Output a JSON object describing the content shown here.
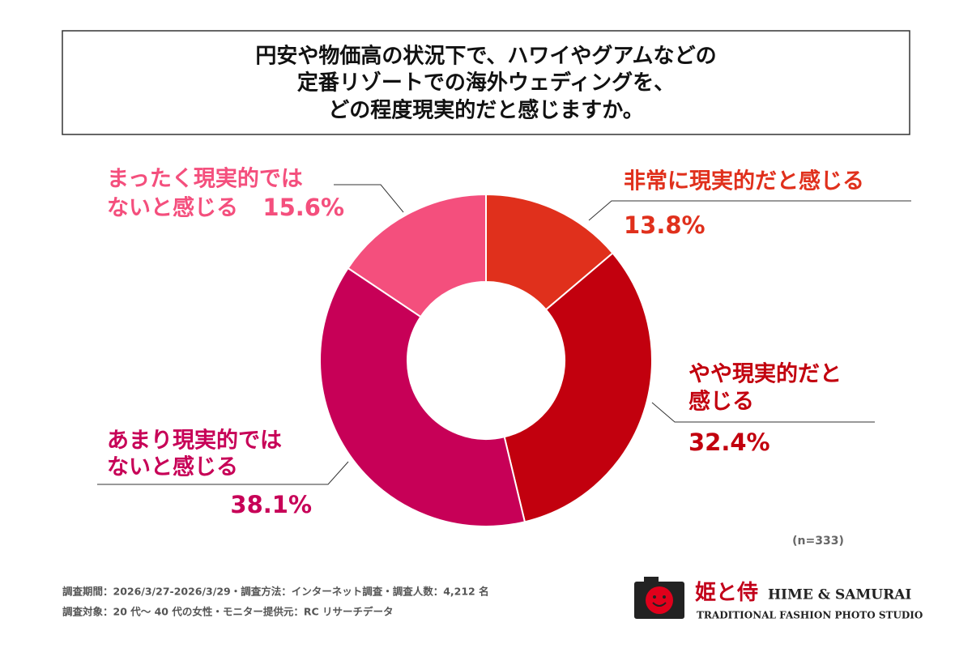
{
  "chart_data": {
    "type": "donut",
    "title": [
      "円安や物価高の状況下で、ハワイやグアムなどの",
      "定番リゾートでの海外ウェディングを、",
      "どの程度現実的だと感じますか。"
    ],
    "categories": [
      [
        "非常に現実的だと感じる"
      ],
      [
        "やや現実的だと",
        "感じる"
      ],
      [
        "あまり現実的では",
        "ないと感じる"
      ],
      [
        "まったく現実的では",
        "ないと感じる"
      ]
    ],
    "values": [
      13.8,
      32.4,
      38.1,
      15.6
    ],
    "value_labels": [
      "13.8%",
      "32.4%",
      "38.1%",
      "15.6%"
    ],
    "colors": [
      "#e0301c",
      "#c2000e",
      "#c70057",
      "#f44f7d"
    ],
    "note": "(n=333)"
  },
  "footer": {
    "notes": [
      "調査期間：2026/3/27-2026/3/29・調査方法：インターネット調査・調査人数：4,212 名",
      "調査対象：20 代〜 40 代の女性・モニター提供元：RC リサーチデータ"
    ],
    "logo": {
      "name": "姫と侍",
      "english": "HIME & SAMURAI",
      "tagline": "TRADITIONAL FASHION PHOTO STUDIO"
    }
  }
}
